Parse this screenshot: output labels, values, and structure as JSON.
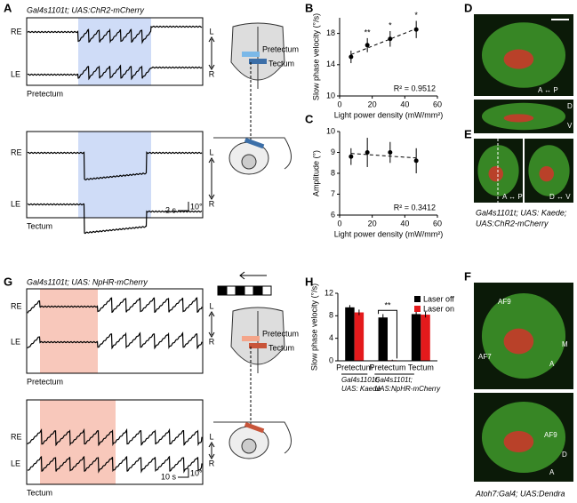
{
  "panel_labels": [
    "A",
    "B",
    "C",
    "D",
    "E",
    "F",
    "G",
    "H"
  ],
  "panel_a": {
    "title": "Gal4s1101t; UAS:ChR2-mCherry",
    "traces": [
      "RE",
      "LE"
    ],
    "regions": [
      "Pretectum",
      "Tectum"
    ],
    "scale": [
      "2 s",
      "10°"
    ],
    "axis": [
      "L",
      "R"
    ],
    "schematic": [
      "Pretectum",
      "Tectum"
    ]
  },
  "panel_g": {
    "title": "Gal4s1101t; UAS: NpHR-mCherry",
    "traces": [
      "RE",
      "LE"
    ],
    "regions": [
      "Pretectum",
      "Tectum"
    ],
    "scale": [
      "10 s",
      "10°"
    ],
    "axis": [
      "L",
      "R"
    ],
    "schematic": [
      "Pretectum",
      "Tectum"
    ]
  },
  "panel_d": {
    "labels": [
      "A ↔ P",
      "D",
      "V"
    ]
  },
  "panel_e": {
    "labels": [
      "A ↔ P",
      "D ↔ V"
    ],
    "caption": [
      "Gal4s1101t; UAS: Kaede;",
      "UAS:ChR2-mCherry"
    ]
  },
  "panel_f": {
    "labels": [
      "AF9",
      "AF7",
      "M",
      "A",
      "AF9",
      "D",
      "A"
    ],
    "caption": "Atoh7:Gal4; UAS:Dendra"
  },
  "chart_data": [
    {
      "type": "scatter",
      "x": [
        7,
        17,
        31,
        47
      ],
      "values": [
        15.0,
        16.5,
        17.3,
        18.5
      ],
      "errors": [
        0.8,
        0.9,
        1.0,
        1.1
      ],
      "xlim": [
        0,
        60
      ],
      "xticks": [
        0,
        20,
        40,
        60
      ],
      "ylim": [
        10,
        20
      ],
      "yticks": [
        10,
        14,
        18
      ],
      "ylabel": "Slow phase velocity (°/s)",
      "xlabel": "Light power density (mW/mm²)",
      "annotation": "R² = 0.9512",
      "significance": [
        {
          "x": 17,
          "text": "**"
        },
        {
          "x": 31,
          "text": "*"
        },
        {
          "x": 47,
          "text": "*"
        }
      ],
      "color": "#000000"
    },
    {
      "type": "scatter",
      "x": [
        7,
        17,
        31,
        47
      ],
      "values": [
        8.8,
        9.0,
        9.0,
        8.6
      ],
      "errors": [
        0.4,
        0.7,
        0.5,
        0.6
      ],
      "xlim": [
        0,
        60
      ],
      "xticks": [
        0,
        20,
        40,
        60
      ],
      "ylim": [
        6,
        10
      ],
      "yticks": [
        6,
        7,
        8,
        9,
        10
      ],
      "ylabel": "Amplitude (°)",
      "xlabel": "Light power density (mW/mm²)",
      "annotation": "R² = 0.3412",
      "color": "#000000"
    },
    {
      "type": "bar",
      "categories": [
        "Pretectum",
        "Pretectum",
        "Tectum"
      ],
      "series": [
        {
          "name": "Laser off",
          "color": "#000000",
          "values": [
            9.5,
            7.7,
            8.3
          ],
          "errors": [
            0.4,
            0.6,
            0.4
          ]
        },
        {
          "name": "Laser on",
          "color": "#e41a1c",
          "values": [
            8.6,
            0.1,
            8.2
          ],
          "errors": [
            0.5,
            0.1,
            0.5
          ]
        }
      ],
      "ylim": [
        0,
        12
      ],
      "yticks": [
        0,
        4,
        8,
        12
      ],
      "ylabel": "Slow phase velocity (°/s)",
      "significance": [
        {
          "category": 1,
          "text": "**"
        }
      ],
      "groups": [
        [
          "Gal4s1101t;",
          "UAS: Kaede"
        ],
        [
          "Gal4s1101t;",
          "UAS:NpHR-mCherry"
        ]
      ]
    }
  ]
}
